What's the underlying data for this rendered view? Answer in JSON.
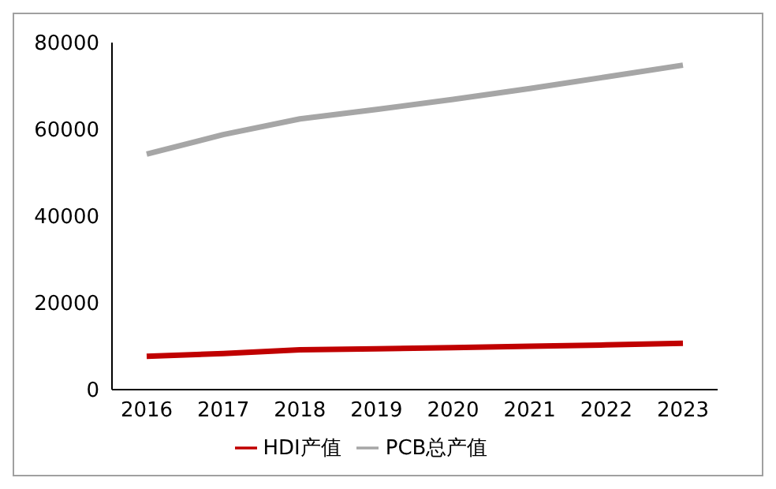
{
  "chart_data": {
    "type": "line",
    "categories": [
      "2016",
      "2017",
      "2018",
      "2019",
      "2020",
      "2021",
      "2022",
      "2023"
    ],
    "series": [
      {
        "name": "HDI产值",
        "color": "#c00000",
        "values": [
          7700,
          8300,
          9200,
          9400,
          9700,
          10000,
          10300,
          10700
        ]
      },
      {
        "name": "PCB总产值",
        "color": "#a6a6a6",
        "values": [
          54300,
          58800,
          62400,
          64600,
          66900,
          69400,
          72100,
          74800
        ]
      }
    ],
    "ylim": [
      0,
      80000
    ],
    "yticks": [
      0,
      20000,
      40000,
      60000,
      80000
    ],
    "grid": false,
    "legend": "bottom",
    "marker": "none",
    "line_style": "solid"
  }
}
